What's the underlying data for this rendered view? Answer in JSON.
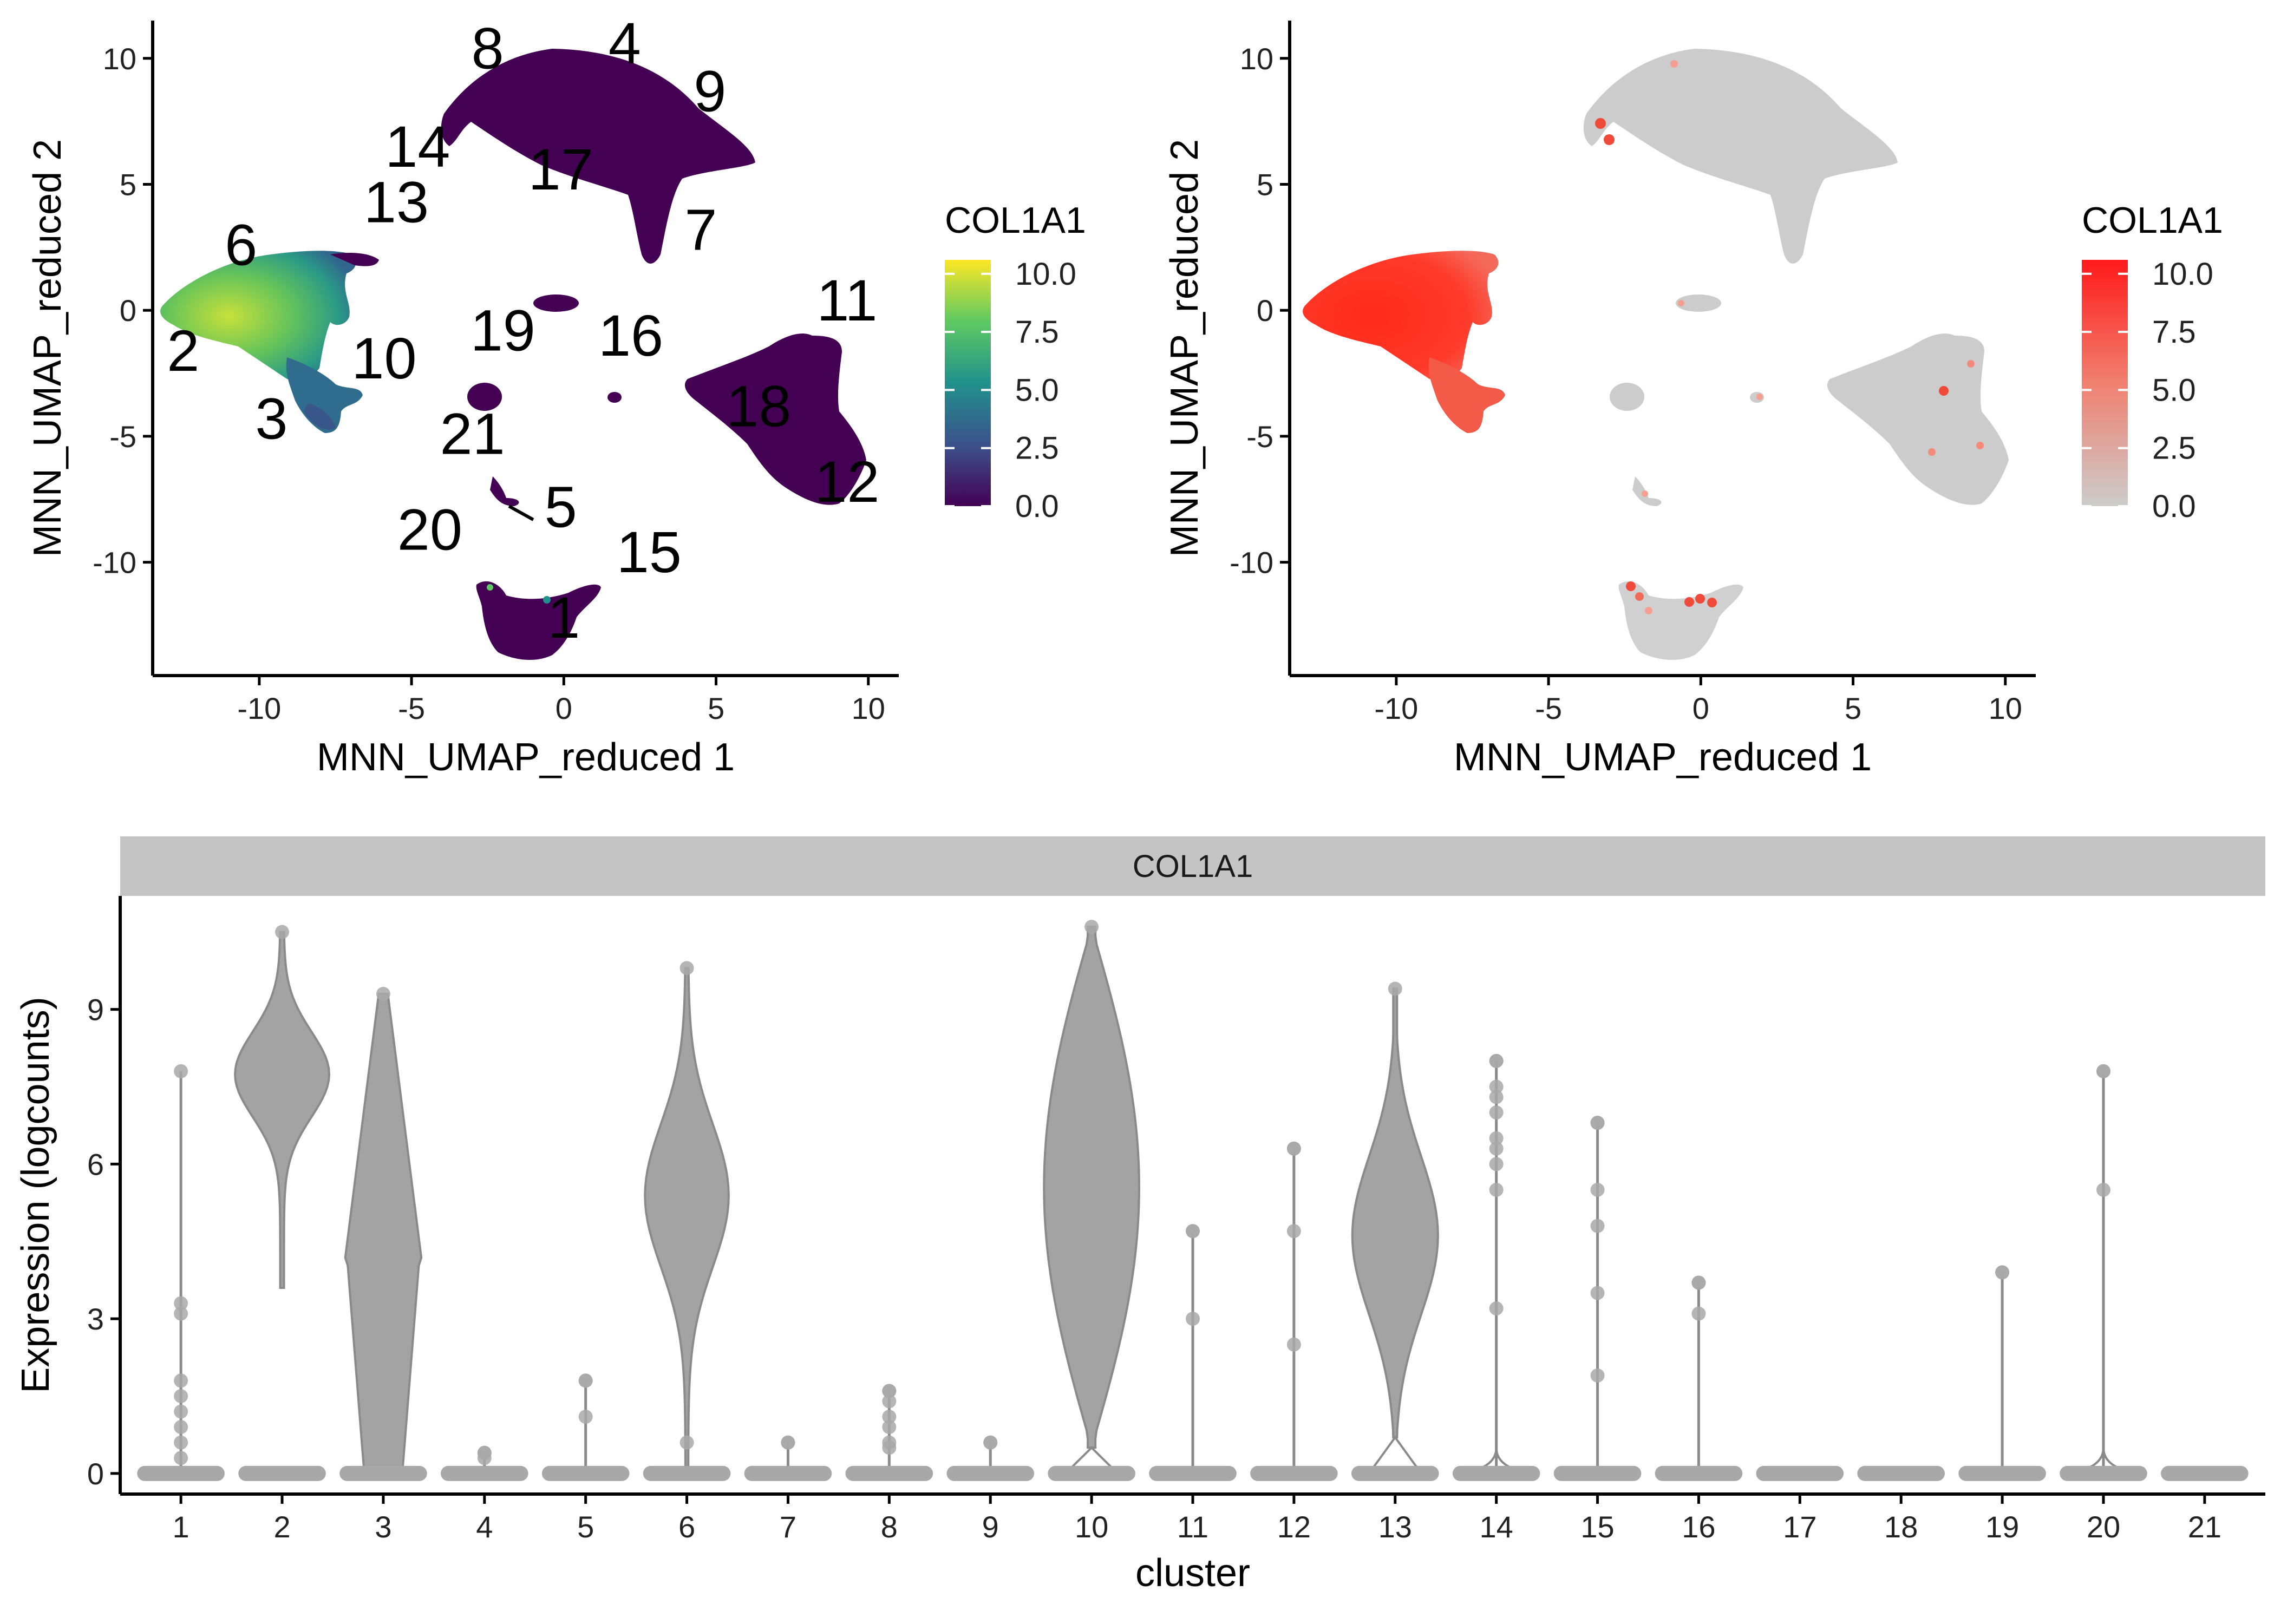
{
  "chart_data": [
    {
      "type": "scatter",
      "panel": "umap-viridis",
      "xlabel": "MNN_UMAP_reduced 1",
      "ylabel": "MNN_UMAP_reduced 2",
      "xlim": [
        -13.5,
        11
      ],
      "ylim": [
        -14.5,
        11.5
      ],
      "xticks": [
        -10,
        -5,
        0,
        5,
        10
      ],
      "yticks": [
        -10,
        -5,
        0,
        5,
        10
      ],
      "legend": {
        "title": "COL1A1",
        "position": "right",
        "colormap": "viridis",
        "ticks": [
          0.0,
          2.5,
          5.0,
          7.5,
          10.0
        ],
        "tick_labels": [
          "0.0",
          "2.5",
          "5.0",
          "7.5",
          "10.0"
        ]
      },
      "cluster_labels": [
        {
          "label": "8",
          "x": -2.5,
          "y": 9.6
        },
        {
          "label": "4",
          "x": 2.0,
          "y": 9.8
        },
        {
          "label": "9",
          "x": 4.8,
          "y": 7.9
        },
        {
          "label": "14",
          "x": -4.8,
          "y": 5.7
        },
        {
          "label": "17",
          "x": -0.1,
          "y": 4.8
        },
        {
          "label": "13",
          "x": -5.5,
          "y": 3.5
        },
        {
          "label": "7",
          "x": 4.5,
          "y": 2.4
        },
        {
          "label": "6",
          "x": -10.6,
          "y": 1.8
        },
        {
          "label": "11",
          "x": 9.3,
          "y": -0.4
        },
        {
          "label": "19",
          "x": -2.0,
          "y": -1.6
        },
        {
          "label": "16",
          "x": 2.2,
          "y": -1.8
        },
        {
          "label": "2",
          "x": -12.5,
          "y": -2.4
        },
        {
          "label": "10",
          "x": -5.9,
          "y": -2.7
        },
        {
          "label": "18",
          "x": 6.4,
          "y": -4.6
        },
        {
          "label": "3",
          "x": -9.6,
          "y": -5.1
        },
        {
          "label": "21",
          "x": -3.0,
          "y": -5.7
        },
        {
          "label": "12",
          "x": 9.3,
          "y": -7.6
        },
        {
          "label": "5",
          "x": -0.1,
          "y": -8.6
        },
        {
          "label": "20",
          "x": -4.4,
          "y": -9.5
        },
        {
          "label": "15",
          "x": 2.8,
          "y": -10.4
        },
        {
          "label": "1",
          "x": 0.0,
          "y": -13.0
        }
      ],
      "cluster_regions": [
        {
          "cluster": "8/4/9/17",
          "x": 1.5,
          "y": 8.0,
          "level": 0.0
        },
        {
          "cluster": "2/6",
          "x": -10.5,
          "y": 0.0,
          "level": 6.5
        },
        {
          "cluster": "3",
          "x": -8.7,
          "y": -4.0,
          "level": 3.5
        },
        {
          "cluster": "10",
          "x": -7.6,
          "y": -3.0,
          "level": 7.0
        },
        {
          "cluster": "11/18/12",
          "x": 6.9,
          "y": -4.0,
          "level": 0.0
        },
        {
          "cluster": "1/15",
          "x": -0.3,
          "y": -12.3,
          "level": 0.0
        }
      ]
    },
    {
      "type": "scatter",
      "panel": "umap-red",
      "xlabel": "MNN_UMAP_reduced 1",
      "ylabel": "MNN_UMAP_reduced 2",
      "xlim": [
        -13.5,
        11
      ],
      "ylim": [
        -14.5,
        11.5
      ],
      "xticks": [
        -10,
        -5,
        0,
        5,
        10
      ],
      "yticks": [
        -10,
        -5,
        0,
        5,
        10
      ],
      "legend": {
        "title": "COL1A1",
        "position": "right",
        "colormap": "grey-red",
        "ticks": [
          0.0,
          2.5,
          5.0,
          7.5,
          10.0
        ],
        "tick_labels": [
          "0.0",
          "2.5",
          "5.0",
          "7.5",
          "10.0"
        ]
      }
    },
    {
      "type": "violin",
      "facet": "COL1A1",
      "xlabel": "cluster",
      "ylabel": "Expression (logcounts)",
      "ylim": [
        -0.4,
        11.2
      ],
      "yticks": [
        0,
        3,
        6,
        9
      ],
      "categories": [
        "1",
        "2",
        "3",
        "4",
        "5",
        "6",
        "7",
        "8",
        "9",
        "10",
        "11",
        "12",
        "13",
        "14",
        "15",
        "16",
        "17",
        "18",
        "19",
        "20",
        "21"
      ],
      "max_values": [
        7.8,
        10.5,
        9.3,
        0.4,
        1.8,
        9.8,
        0.6,
        1.6,
        0.6,
        10.6,
        4.7,
        6.3,
        9.4,
        8.0,
        6.8,
        3.7,
        0,
        0,
        3.9,
        7.8,
        0
      ],
      "min_values": [
        0,
        3.6,
        0,
        0,
        0,
        0,
        0,
        0,
        0,
        0.5,
        0,
        0,
        0.7,
        0,
        0,
        0,
        0,
        0,
        0,
        0,
        0
      ],
      "outliers": [
        [
          3.3,
          3.1,
          1.8,
          1.5,
          1.2,
          0.9,
          0.6,
          0.3
        ],
        [],
        [],
        [
          0.3,
          0.4
        ],
        [
          1.8,
          1.1
        ],
        [
          0.6,
          0
        ],
        [
          0.6
        ],
        [
          1.6,
          1.4,
          1.1,
          0.9,
          0.6,
          0.5
        ],
        [
          0.6
        ],
        [],
        [
          4.7,
          3.0
        ],
        [
          6.3,
          4.7,
          2.5
        ],
        [],
        [
          8.0,
          7.5,
          7.3,
          7.0,
          6.5,
          6.3,
          6.0,
          5.5,
          3.2
        ],
        [
          6.8,
          5.5,
          4.8,
          3.5,
          1.9
        ],
        [
          3.7,
          3.1
        ],
        [],
        [],
        [
          3.9
        ],
        [
          7.8,
          5.5
        ],
        []
      ]
    }
  ]
}
